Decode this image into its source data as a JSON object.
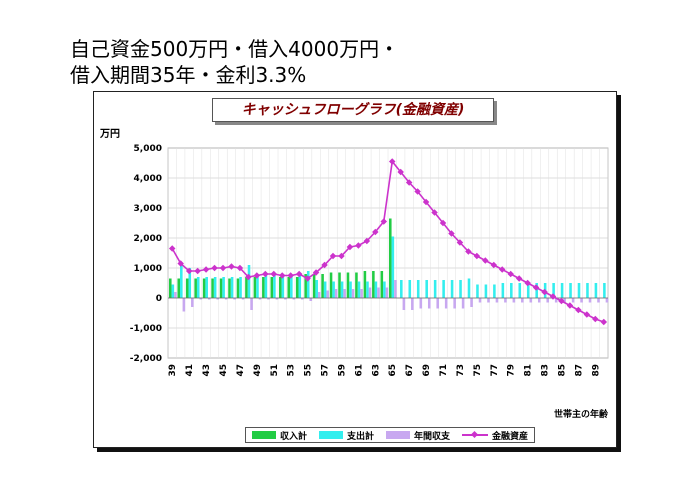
{
  "page_title": "自己資金500万円・借入4000万円・\n借入期間35年・金利3.3%",
  "chart_data": {
    "type": "bar",
    "title": "キャッシュフローグラフ(金融資産)",
    "ylabel": "万円",
    "xlabel": "世帯主の年齢",
    "ylim": [
      -2000,
      5000
    ],
    "yticks": [
      5000,
      4000,
      3000,
      2000,
      1000,
      0,
      -1000,
      -2000
    ],
    "ytick_labels": [
      "5,000",
      "4,000",
      "3,000",
      "2,000",
      "1,000",
      "0",
      "-1,000",
      "-2,000"
    ],
    "x": [
      39,
      40,
      41,
      42,
      43,
      44,
      45,
      46,
      47,
      48,
      49,
      50,
      51,
      52,
      53,
      54,
      55,
      56,
      57,
      58,
      59,
      60,
      61,
      62,
      63,
      64,
      65,
      66,
      67,
      68,
      69,
      70,
      71,
      72,
      73,
      74,
      75,
      76,
      77,
      78,
      79,
      80,
      81,
      82,
      83,
      84,
      85,
      86,
      87,
      88,
      89,
      90
    ],
    "x_tick_labels": [
      "39",
      "41",
      "43",
      "45",
      "47",
      "49",
      "51",
      "53",
      "55",
      "57",
      "59",
      "61",
      "63",
      "65",
      "67",
      "69",
      "71",
      "73",
      "75",
      "77",
      "79",
      "81",
      "83",
      "85",
      "87",
      "89"
    ],
    "series": [
      {
        "name": "収入計",
        "type": "bar",
        "color": "#22cc44",
        "values": [
          650,
          650,
          650,
          650,
          650,
          650,
          650,
          650,
          650,
          700,
          700,
          700,
          700,
          700,
          700,
          700,
          800,
          800,
          800,
          850,
          850,
          850,
          850,
          900,
          900,
          900,
          2650,
          0,
          0,
          0,
          0,
          0,
          0,
          0,
          0,
          0,
          0,
          0,
          0,
          0,
          0,
          0,
          0,
          0,
          0,
          0,
          0,
          0,
          0,
          0,
          0,
          0
        ]
      },
      {
        "name": "支出計",
        "type": "bar",
        "color": "#33eeee",
        "values": [
          450,
          1100,
          1000,
          700,
          700,
          700,
          700,
          700,
          700,
          1100,
          750,
          750,
          750,
          750,
          750,
          750,
          900,
          600,
          550,
          550,
          550,
          550,
          550,
          550,
          550,
          550,
          2050,
          600,
          600,
          600,
          600,
          600,
          600,
          600,
          600,
          650,
          450,
          450,
          450,
          500,
          500,
          500,
          500,
          500,
          500,
          500,
          500,
          500,
          500,
          500,
          500,
          500
        ]
      },
      {
        "name": "年間収支",
        "type": "bar",
        "color": "#c8a8f0",
        "values": [
          200,
          -450,
          -300,
          -50,
          -50,
          -50,
          -50,
          -50,
          -50,
          -400,
          -50,
          -50,
          -50,
          -50,
          -50,
          -50,
          -100,
          200,
          250,
          300,
          300,
          300,
          300,
          350,
          350,
          350,
          600,
          -400,
          -400,
          -350,
          -350,
          -350,
          -350,
          -350,
          -350,
          -300,
          -150,
          -150,
          -150,
          -150,
          -150,
          -150,
          -150,
          -150,
          -150,
          -150,
          -150,
          -150,
          -150,
          -150,
          -150,
          -150
        ]
      },
      {
        "name": "金融資産",
        "type": "line",
        "color": "#cc33cc",
        "values": [
          1650,
          1150,
          900,
          900,
          950,
          1000,
          1000,
          1050,
          1000,
          700,
          750,
          800,
          800,
          750,
          750,
          800,
          650,
          850,
          1100,
          1400,
          1400,
          1700,
          1750,
          1900,
          2200,
          2550,
          4550,
          4200,
          3850,
          3550,
          3200,
          2850,
          2500,
          2150,
          1850,
          1550,
          1400,
          1250,
          1100,
          950,
          800,
          650,
          500,
          350,
          200,
          50,
          -100,
          -250,
          -400,
          -550,
          -700,
          -800
        ]
      }
    ],
    "legend_position": "bottom",
    "grid": true
  }
}
